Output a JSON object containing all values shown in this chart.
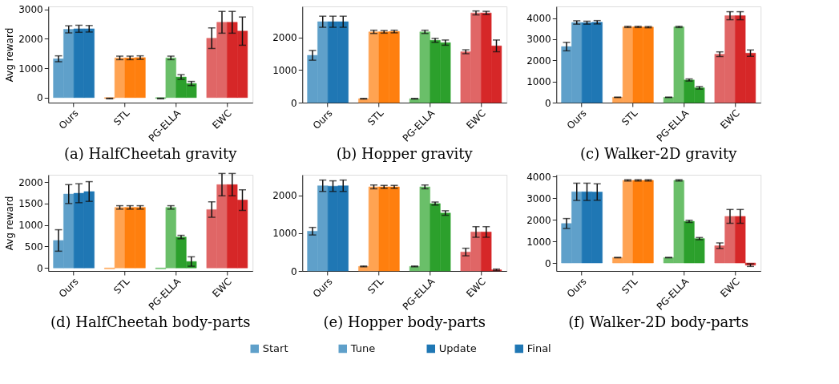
{
  "chart_data": [
    {
      "type": "bar",
      "title": "(a) HalfCheetah gravity",
      "ylabel": "Avg reward",
      "categories": [
        "Ours",
        "STL",
        "PG-ELLA",
        "EWC"
      ],
      "ylim": [
        -170,
        3100
      ],
      "yticks": [
        0,
        1000,
        2000,
        3000
      ],
      "grid": false,
      "series": [
        {
          "colors": [
            "#5fa0ca",
            "#ffa352",
            "#6abf69",
            "#e06666"
          ],
          "values": [
            1320,
            -30,
            -30,
            2020
          ],
          "errors": [
            100,
            10,
            10,
            350
          ]
        },
        {
          "colors": [
            "#5fa0ca",
            "#ffa352",
            "#6abf69",
            "#e06666"
          ],
          "values": [
            2320,
            1350,
            1350,
            2560
          ],
          "errors": [
            120,
            60,
            60,
            370
          ]
        },
        {
          "colors": [
            "#1f77b4",
            "#ff7f0e",
            "#2ca02c",
            "#d62728"
          ],
          "values": [
            2340,
            1350,
            700,
            2560
          ],
          "errors": [
            120,
            60,
            80,
            370
          ]
        },
        {
          "colors": [
            "#1f77b4",
            "#ff7f0e",
            "#2ca02c",
            "#d62728"
          ],
          "values": [
            2340,
            1360,
            480,
            2260
          ],
          "errors": [
            110,
            60,
            70,
            480
          ]
        }
      ]
    },
    {
      "type": "bar",
      "title": "(b) Hopper gravity",
      "categories": [
        "Ours",
        "STL",
        "PG-ELLA",
        "EWC"
      ],
      "ylim": [
        0,
        2950
      ],
      "yticks": [
        0,
        1000,
        2000
      ],
      "grid": false,
      "series": [
        {
          "colors": [
            "#5fa0ca",
            "#ffa352",
            "#6abf69",
            "#e06666"
          ],
          "values": [
            1450,
            120,
            120,
            1560
          ],
          "errors": [
            150,
            10,
            10,
            60
          ]
        },
        {
          "colors": [
            "#5fa0ca",
            "#ffa352",
            "#6abf69",
            "#e06666"
          ],
          "values": [
            2480,
            2170,
            2170,
            2750
          ],
          "errors": [
            170,
            50,
            50,
            60
          ]
        },
        {
          "colors": [
            "#1f77b4",
            "#ff7f0e",
            "#2ca02c",
            "#d62728"
          ],
          "values": [
            2480,
            2170,
            1910,
            2750
          ],
          "errors": [
            170,
            40,
            60,
            50
          ]
        },
        {
          "colors": [
            "#1f77b4",
            "#ff7f0e",
            "#2ca02c",
            "#d62728"
          ],
          "values": [
            2480,
            2180,
            1840,
            1740
          ],
          "errors": [
            170,
            40,
            80,
            180
          ]
        }
      ]
    },
    {
      "type": "bar",
      "title": "(c) Walker-2D gravity",
      "categories": [
        "Ours",
        "STL",
        "PG-ELLA",
        "EWC"
      ],
      "ylim": [
        0,
        4550
      ],
      "yticks": [
        0,
        1000,
        2000,
        3000,
        4000
      ],
      "grid": false,
      "series": [
        {
          "colors": [
            "#5fa0ca",
            "#ffa352",
            "#6abf69",
            "#e06666"
          ],
          "values": [
            2650,
            250,
            250,
            2290
          ],
          "errors": [
            200,
            10,
            10,
            110
          ]
        },
        {
          "colors": [
            "#5fa0ca",
            "#ffa352",
            "#6abf69",
            "#e06666"
          ],
          "values": [
            3790,
            3580,
            3580,
            4110
          ],
          "errors": [
            80,
            30,
            30,
            190
          ]
        },
        {
          "colors": [
            "#1f77b4",
            "#ff7f0e",
            "#2ca02c",
            "#d62728"
          ],
          "values": [
            3780,
            3580,
            1070,
            4110
          ],
          "errors": [
            70,
            30,
            50,
            190
          ]
        },
        {
          "colors": [
            "#1f77b4",
            "#ff7f0e",
            "#2ca02c",
            "#d62728"
          ],
          "values": [
            3800,
            3570,
            700,
            2340
          ],
          "errors": [
            80,
            30,
            60,
            150
          ]
        }
      ]
    },
    {
      "type": "bar",
      "title": "(d) HalfCheetah body-parts",
      "ylabel": "Avg reward",
      "categories": [
        "Ours",
        "STL",
        "PG-ELLA",
        "EWC"
      ],
      "ylim": [
        -70,
        2170
      ],
      "yticks": [
        0,
        500,
        1000,
        1500,
        2000
      ],
      "grid": false,
      "series": [
        {
          "colors": [
            "#5fa0ca",
            "#ffa352",
            "#6abf69",
            "#e06666"
          ],
          "values": [
            640,
            -20,
            -20,
            1360
          ],
          "errors": [
            250,
            null,
            null,
            180
          ]
        },
        {
          "colors": [
            "#5fa0ca",
            "#ffa352",
            "#6abf69",
            "#e06666"
          ],
          "values": [
            1720,
            1410,
            1410,
            1940
          ],
          "errors": [
            220,
            40,
            40,
            260
          ]
        },
        {
          "colors": [
            "#1f77b4",
            "#ff7f0e",
            "#2ca02c",
            "#d62728"
          ],
          "values": [
            1740,
            1410,
            720,
            1940
          ],
          "errors": [
            220,
            40,
            40,
            260
          ]
        },
        {
          "colors": [
            "#1f77b4",
            "#ff7f0e",
            "#2ca02c",
            "#d62728"
          ],
          "values": [
            1780,
            1410,
            150,
            1580
          ],
          "errors": [
            230,
            40,
            110,
            240
          ]
        }
      ]
    },
    {
      "type": "bar",
      "title": "(e) Hopper body-parts",
      "categories": [
        "Ours",
        "STL",
        "PG-ELLA",
        "EWC"
      ],
      "ylim": [
        0,
        2540
      ],
      "yticks": [
        0,
        1000,
        2000
      ],
      "grid": false,
      "legend": "bottom",
      "series": [
        {
          "name": "Start",
          "colors": [
            "#5fa0ca",
            "#ffa352",
            "#6abf69",
            "#e06666"
          ],
          "values": [
            1050,
            120,
            120,
            500
          ],
          "errors": [
            100,
            10,
            10,
            100
          ]
        },
        {
          "name": "Tune",
          "colors": [
            "#5fa0ca",
            "#ffa352",
            "#6abf69",
            "#e06666"
          ],
          "values": [
            2250,
            2220,
            2220,
            1030
          ],
          "errors": [
            150,
            50,
            50,
            140
          ]
        },
        {
          "name": "Update",
          "colors": [
            "#1f77b4",
            "#ff7f0e",
            "#2ca02c",
            "#d62728"
          ],
          "values": [
            2240,
            2220,
            1780,
            1030
          ],
          "errors": [
            140,
            40,
            40,
            140
          ]
        },
        {
          "name": "Final",
          "colors": [
            "#1f77b4",
            "#ff7f0e",
            "#2ca02c",
            "#d62728"
          ],
          "values": [
            2250,
            2220,
            1530,
            30
          ],
          "errors": [
            150,
            40,
            60,
            20
          ]
        }
      ]
    },
    {
      "type": "bar",
      "title": "(f) Walker-2D body-parts",
      "categories": [
        "Ours",
        "STL",
        "PG-ELLA",
        "EWC"
      ],
      "ylim": [
        -370,
        4090
      ],
      "yticks": [
        0,
        1000,
        2000,
        3000,
        4000
      ],
      "grid": false,
      "series": [
        {
          "colors": [
            "#5fa0ca",
            "#ffa352",
            "#6abf69",
            "#e06666"
          ],
          "values": [
            1830,
            250,
            250,
            800
          ],
          "errors": [
            230,
            10,
            10,
            130
          ]
        },
        {
          "colors": [
            "#5fa0ca",
            "#ffa352",
            "#6abf69",
            "#e06666"
          ],
          "values": [
            3300,
            3830,
            3830,
            2160
          ],
          "errors": [
            400,
            30,
            30,
            320
          ]
        },
        {
          "colors": [
            "#1f77b4",
            "#ff7f0e",
            "#2ca02c",
            "#d62728"
          ],
          "values": [
            3300,
            3830,
            1930,
            2160
          ],
          "errors": [
            400,
            30,
            50,
            320
          ]
        },
        {
          "colors": [
            "#1f77b4",
            "#ff7f0e",
            "#2ca02c",
            "#d62728"
          ],
          "values": [
            3290,
            3830,
            1130,
            -100
          ],
          "errors": [
            380,
            30,
            50,
            60
          ]
        }
      ]
    }
  ]
}
